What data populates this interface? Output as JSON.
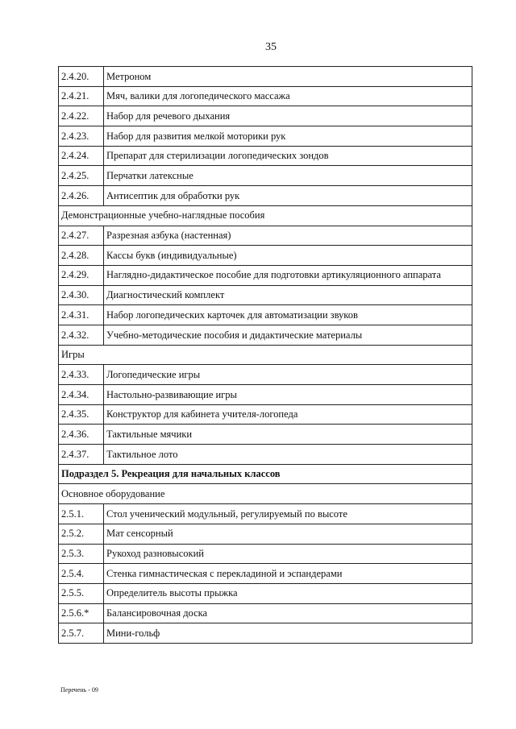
{
  "page_number": "35",
  "rows": [
    {
      "num": "2.4.20.",
      "text": "Метроном"
    },
    {
      "num": "2.4.21.",
      "text": "Мяч, валики для логопедического массажа"
    },
    {
      "num": "2.4.22.",
      "text": "Набор для речевого дыхания"
    },
    {
      "num": "2.4.23.",
      "text": "Набор для развития мелкой моторики рук"
    },
    {
      "num": "2.4.24.",
      "text": "Препарат для стерилизации логопедических зондов"
    },
    {
      "num": "2.4.25.",
      "text": "Перчатки латексные"
    },
    {
      "num": "2.4.26.",
      "text": "Антисептик для обработки рук"
    },
    {
      "section": "Демонстрационные учебно-наглядные пособия"
    },
    {
      "num": "2.4.27.",
      "text": "Разрезная азбука (настенная)"
    },
    {
      "num": "2.4.28.",
      "text": "Кассы букв (индивидуальные)"
    },
    {
      "num": "2.4.29.",
      "text": "Наглядно-дидактическое пособие для подготовки артикуляционного аппарата"
    },
    {
      "num": "2.4.30.",
      "text": "Диагностический комплект"
    },
    {
      "num": "2.4.31.",
      "text": "Набор логопедических карточек для автоматизации звуков"
    },
    {
      "num": "2.4.32.",
      "text": "Учебно-методические пособия и дидактические материалы"
    },
    {
      "section": "Игры"
    },
    {
      "num": "2.4.33.",
      "text": "Логопедические игры"
    },
    {
      "num": "2.4.34.",
      "text": "Настольно-развивающие игры"
    },
    {
      "num": "2.4.35.",
      "text": "Конструктор для кабинета учителя-логопеда"
    },
    {
      "num": "2.4.36.",
      "text": "Тактильные мячики"
    },
    {
      "num": "2.4.37.",
      "text": "Тактильное лото"
    },
    {
      "section": "Подраздел 5. Рекреация для начальных классов",
      "bold": true
    },
    {
      "section": "Основное оборудование"
    },
    {
      "num": "2.5.1.",
      "text": "Стол ученический модульный, регулируемый по высоте"
    },
    {
      "num": "2.5.2.",
      "text": "Мат сенсорный"
    },
    {
      "num": "2.5.3.",
      "text": "Рукоход разновысокий"
    },
    {
      "num": "2.5.4.",
      "text": "Стенка гимнастическая с перекладиной и эспандерами"
    },
    {
      "num": "2.5.5.",
      "text": "Определитель высоты прыжка"
    },
    {
      "num": "2.5.6.*",
      "text": "Балансировочная доска"
    },
    {
      "num": "2.5.7.",
      "text": "Мини-гольф"
    }
  ],
  "footer": "Перечень - 09"
}
